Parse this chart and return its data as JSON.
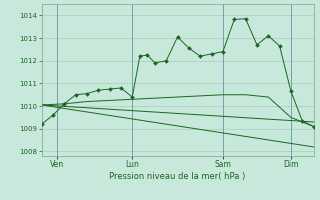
{
  "background_color": "#c8e8dc",
  "grid_color": "#a8ccbc",
  "line_color": "#1a6620",
  "marker_color": "#1a6620",
  "xlim": [
    0,
    72
  ],
  "ylim": [
    1007.8,
    1014.5
  ],
  "yticks": [
    1008,
    1009,
    1010,
    1011,
    1012,
    1013,
    1014
  ],
  "xtick_labels": [
    "Ven",
    "Lun",
    "Sam",
    "Dim"
  ],
  "xtick_positions": [
    4,
    24,
    48,
    66
  ],
  "xlabel": "Pression niveau de la mer( hPa )",
  "series1_x": [
    0,
    3,
    6,
    9,
    12,
    15,
    18,
    21,
    24,
    26,
    28,
    30,
    33,
    36,
    39,
    42,
    45,
    48,
    51,
    54,
    57,
    60,
    63,
    66,
    69,
    72
  ],
  "series1_y": [
    1009.2,
    1009.6,
    1010.1,
    1010.5,
    1010.55,
    1010.7,
    1010.75,
    1010.8,
    1010.4,
    1012.2,
    1012.25,
    1011.9,
    1012.0,
    1013.05,
    1012.55,
    1012.2,
    1012.3,
    1012.4,
    1013.82,
    1013.85,
    1012.7,
    1013.1,
    1012.65,
    1010.65,
    1009.35,
    1009.1
  ],
  "series2_x": [
    0,
    6,
    12,
    18,
    24,
    30,
    36,
    42,
    48,
    54,
    60,
    66,
    72
  ],
  "series2_y": [
    1010.05,
    1010.1,
    1010.2,
    1010.25,
    1010.3,
    1010.35,
    1010.4,
    1010.45,
    1010.5,
    1010.5,
    1010.4,
    1009.5,
    1009.1
  ],
  "series3_x": [
    0,
    72
  ],
  "series3_y": [
    1010.05,
    1009.3
  ],
  "series4_x": [
    0,
    72
  ],
  "series4_y": [
    1010.05,
    1008.2
  ],
  "vline_positions": [
    4,
    24,
    48,
    66
  ],
  "vline_color": "#6699aa"
}
